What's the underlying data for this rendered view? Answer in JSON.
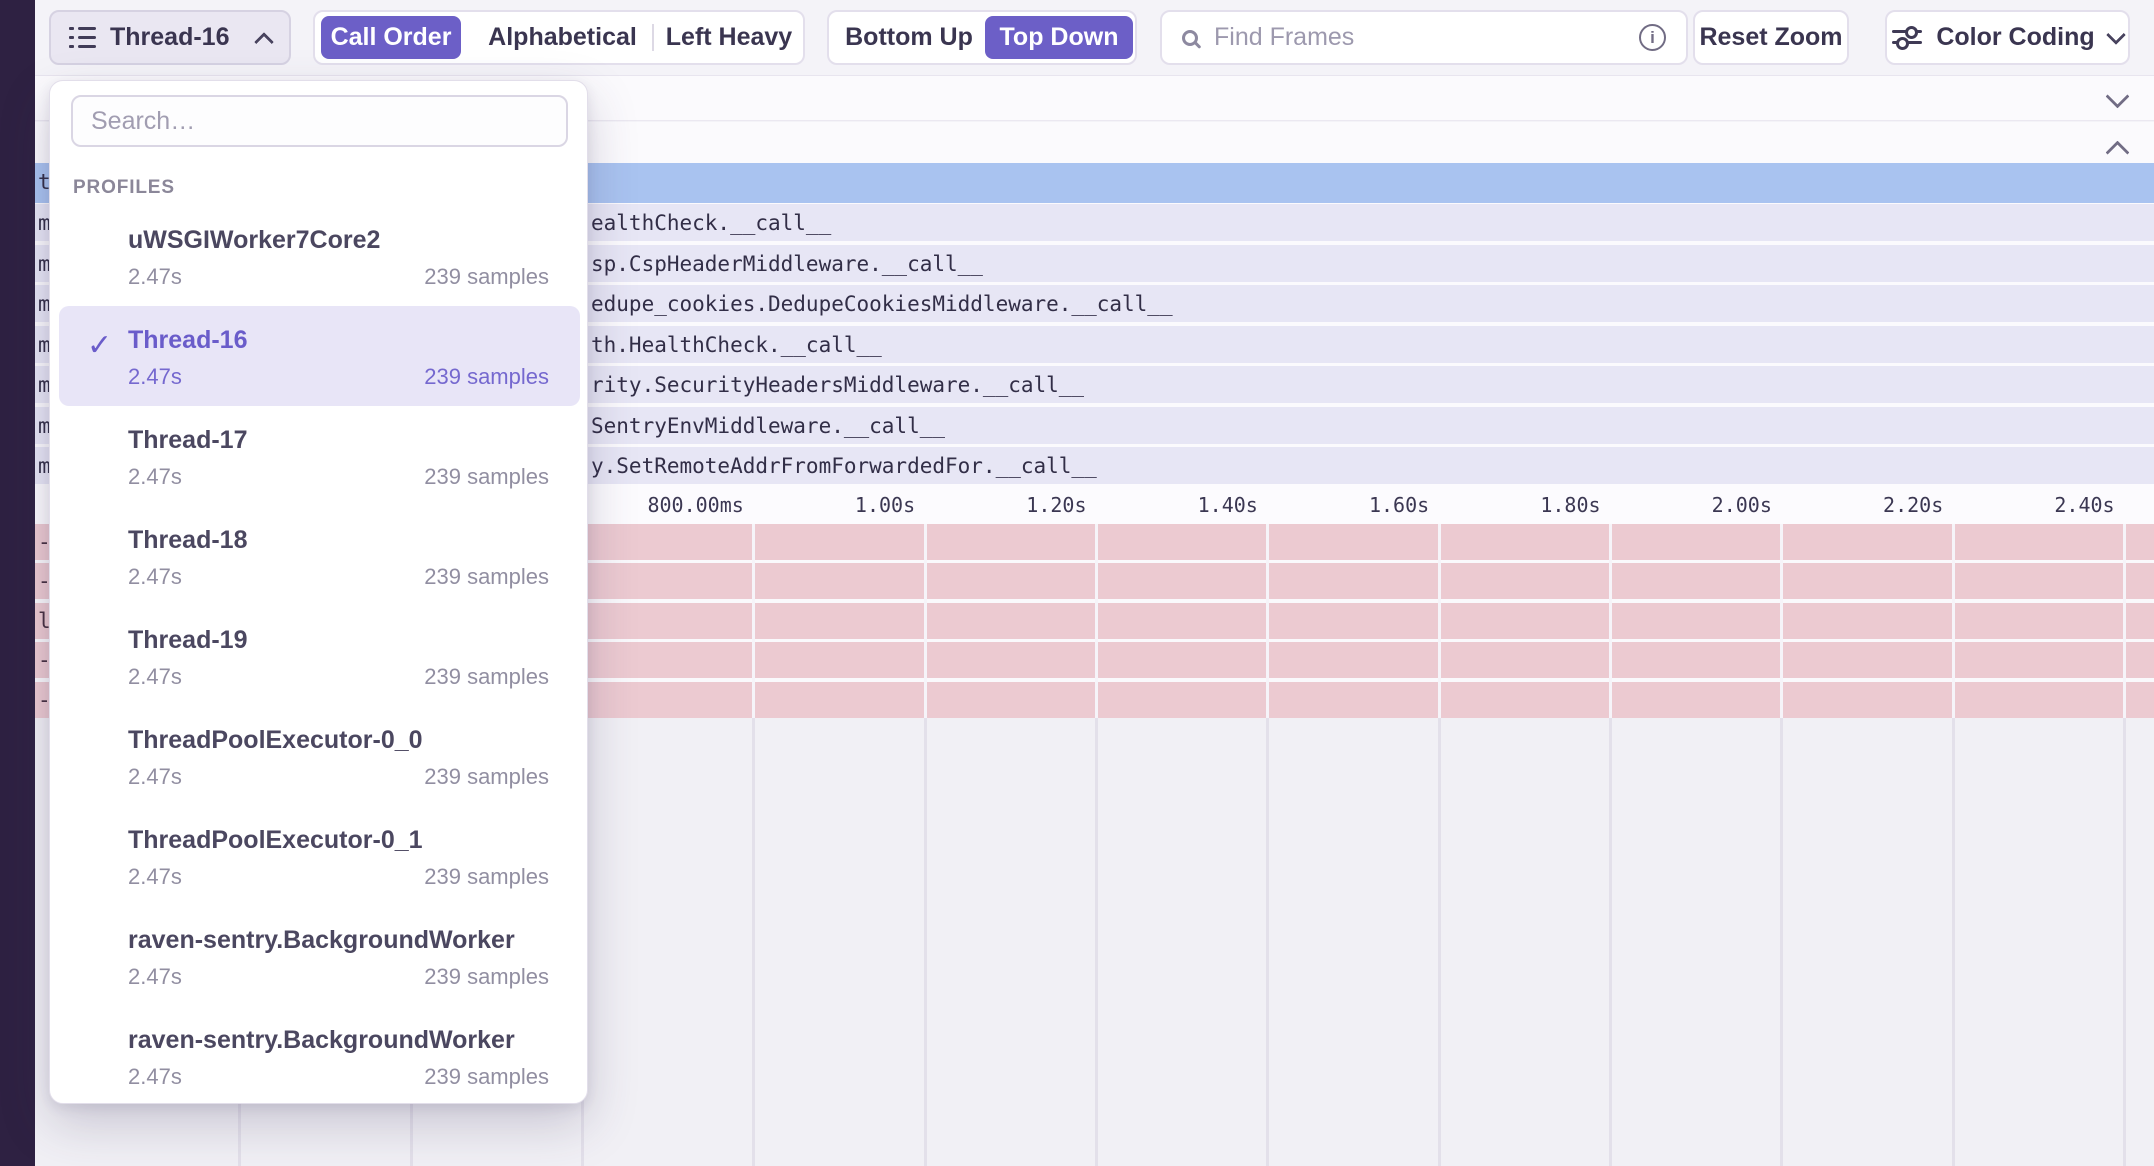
{
  "toolbar": {
    "thread_selector": {
      "label": "Thread-16"
    },
    "sort_modes": {
      "options": [
        "Call Order",
        "Alphabetical",
        "Left Heavy"
      ],
      "selected": "Call Order"
    },
    "direction_modes": {
      "options": [
        "Bottom Up",
        "Top Down"
      ],
      "selected": "Top Down"
    },
    "find_frames": {
      "placeholder": "Find Frames"
    },
    "reset_zoom_label": "Reset Zoom",
    "color_coding_label": "Color Coding"
  },
  "thread_dropdown": {
    "search_placeholder": "Search…",
    "section_label": "PROFILES",
    "items": [
      {
        "name": "uWSGIWorker7Core2",
        "duration": "2.47s",
        "samples": "239 samples",
        "selected": false
      },
      {
        "name": "Thread-16",
        "duration": "2.47s",
        "samples": "239 samples",
        "selected": true
      },
      {
        "name": "Thread-17",
        "duration": "2.47s",
        "samples": "239 samples",
        "selected": false
      },
      {
        "name": "Thread-18",
        "duration": "2.47s",
        "samples": "239 samples",
        "selected": false
      },
      {
        "name": "Thread-19",
        "duration": "2.47s",
        "samples": "239 samples",
        "selected": false
      },
      {
        "name": "ThreadPoolExecutor-0_0",
        "duration": "2.47s",
        "samples": "239 samples",
        "selected": false
      },
      {
        "name": "ThreadPoolExecutor-0_1",
        "duration": "2.47s",
        "samples": "239 samples",
        "selected": false
      },
      {
        "name": "raven-sentry.BackgroundWorker",
        "duration": "2.47s",
        "samples": "239 samples",
        "selected": false
      },
      {
        "name": "raven-sentry.BackgroundWorker",
        "duration": "2.47s",
        "samples": "239 samples",
        "selected": false
      }
    ]
  },
  "flamegraph": {
    "rows": [
      {
        "kind": "root",
        "left_fragment": "t",
        "text": ""
      },
      {
        "kind": "frame",
        "left_fragment": "m",
        "text": "ealthCheck.__call__"
      },
      {
        "kind": "frame",
        "left_fragment": "m",
        "text": "sp.CspHeaderMiddleware.__call__"
      },
      {
        "kind": "frame",
        "left_fragment": "m",
        "text": "edupe_cookies.DedupeCookiesMiddleware.__call__"
      },
      {
        "kind": "frame",
        "left_fragment": "m",
        "text": "th.HealthCheck.__call__"
      },
      {
        "kind": "frame",
        "left_fragment": "m",
        "text": "rity.SecurityHeadersMiddleware.__call__"
      },
      {
        "kind": "frame",
        "left_fragment": "m",
        "text": "SentryEnvMiddleware.__call__"
      },
      {
        "kind": "frame",
        "left_fragment": "m",
        "text": "y.SetRemoteAddrFromForwardedFor.__call__"
      }
    ],
    "axis_ticks": [
      "800.00ms",
      "1.00s",
      "1.20s",
      "1.40s",
      "1.60s",
      "1.80s",
      "2.00s",
      "2.20s",
      "2.40s"
    ],
    "hot_rows": [
      {
        "left_fragment": "-"
      },
      {
        "left_fragment": "-"
      },
      {
        "left_fragment": "l"
      },
      {
        "left_fragment": "-"
      },
      {
        "left_fragment": "-"
      }
    ]
  },
  "colors": {
    "accent": "#6c5fc7",
    "root_row": "#a9c3f0",
    "frame_row": "#e7e6f5",
    "hot_row": "#eccad1",
    "sidebar": "#2e2142"
  }
}
